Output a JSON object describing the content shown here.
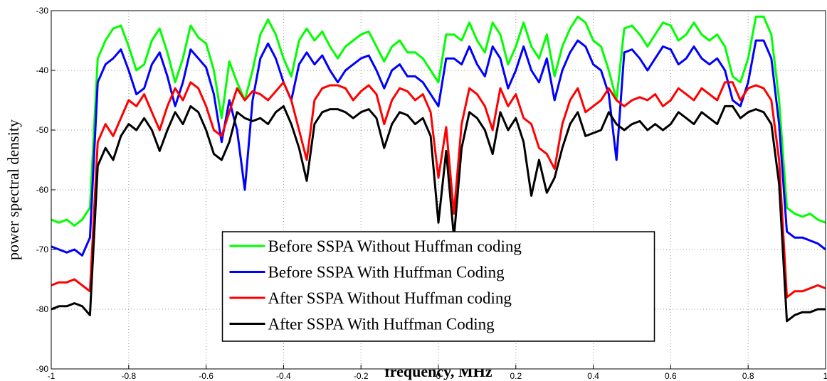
{
  "chart_data": {
    "type": "line",
    "xlabel": "frequency, MHz",
    "ylabel": "power spectral density",
    "xlim": [
      -1,
      1
    ],
    "ylim": [
      -90,
      -30
    ],
    "xticks": [
      -1,
      -0.8,
      -0.6,
      -0.4,
      -0.2,
      0,
      0.2,
      0.4,
      0.6,
      0.8,
      1
    ],
    "yticks": [
      -90,
      -80,
      -70,
      -60,
      -50,
      -40,
      -30
    ],
    "grid": true,
    "legend": "lower center",
    "x": [
      -1.0,
      -0.98,
      -0.96,
      -0.94,
      -0.92,
      -0.9,
      -0.88,
      -0.86,
      -0.84,
      -0.82,
      -0.8,
      -0.78,
      -0.76,
      -0.74,
      -0.72,
      -0.7,
      -0.68,
      -0.66,
      -0.64,
      -0.62,
      -0.6,
      -0.58,
      -0.56,
      -0.54,
      -0.52,
      -0.5,
      -0.48,
      -0.46,
      -0.44,
      -0.42,
      -0.4,
      -0.38,
      -0.36,
      -0.34,
      -0.32,
      -0.3,
      -0.28,
      -0.26,
      -0.24,
      -0.22,
      -0.2,
      -0.18,
      -0.16,
      -0.14,
      -0.12,
      -0.1,
      -0.08,
      -0.06,
      -0.04,
      -0.02,
      0.0,
      0.02,
      0.04,
      0.06,
      0.08,
      0.1,
      0.12,
      0.14,
      0.16,
      0.18,
      0.2,
      0.22,
      0.24,
      0.26,
      0.28,
      0.3,
      0.32,
      0.34,
      0.36,
      0.38,
      0.4,
      0.42,
      0.44,
      0.46,
      0.48,
      0.5,
      0.52,
      0.54,
      0.56,
      0.58,
      0.6,
      0.62,
      0.64,
      0.66,
      0.68,
      0.7,
      0.72,
      0.74,
      0.76,
      0.78,
      0.8,
      0.82,
      0.84,
      0.86,
      0.88,
      0.9,
      0.92,
      0.94,
      0.96,
      0.98,
      1.0
    ],
    "series": [
      {
        "name": "Before SSPA Without Huffman coding",
        "color": "#00ff00",
        "values": [
          -65,
          -65.5,
          -65,
          -66,
          -65,
          -63,
          -38,
          -35,
          -33,
          -32.5,
          -36,
          -40,
          -39,
          -35,
          -33,
          -37,
          -42,
          -38,
          -32.5,
          -34.5,
          -35.5,
          -40,
          -48,
          -38.5,
          -42,
          -45,
          -40,
          -34,
          -31.5,
          -34,
          -38,
          -41,
          -35,
          -33,
          -35,
          -33.5,
          -36,
          -38,
          -36,
          -35,
          -34,
          -33.5,
          -36,
          -38.5,
          -36,
          -35,
          -37,
          -37,
          -38,
          -40,
          -42,
          -34,
          -34,
          -35,
          -32,
          -35,
          -37,
          -32,
          -34,
          -39,
          -36,
          -32,
          -36,
          -38,
          -34,
          -41,
          -36,
          -33,
          -31,
          -32,
          -35,
          -36,
          -40,
          -45,
          -33,
          -32.5,
          -34,
          -36,
          -34,
          -32,
          -32.5,
          -35,
          -34,
          -32,
          -34,
          -35,
          -34,
          -36,
          -41,
          -42,
          -38,
          -31,
          -31,
          -34,
          -45,
          -63,
          -64,
          -64.5,
          -64,
          -65,
          -65.5
        ]
      },
      {
        "name": "Before SSPA With Huffman Coding",
        "color": "#0000ff",
        "values": [
          -69.5,
          -70,
          -70.5,
          -70,
          -71,
          -68,
          -42,
          -39,
          -38,
          -36.5,
          -40,
          -44,
          -43,
          -39,
          -37,
          -41,
          -46,
          -42,
          -36.5,
          -38,
          -39.5,
          -44,
          -52,
          -45,
          -50,
          -60,
          -45,
          -38,
          -35.5,
          -38,
          -42,
          -45,
          -39,
          -37,
          -39,
          -37.5,
          -40,
          -42,
          -40,
          -39,
          -38,
          -37.5,
          -40,
          -43,
          -40,
          -39,
          -41,
          -41,
          -42,
          -44,
          -46,
          -38,
          -38,
          -39,
          -36,
          -39,
          -41,
          -36,
          -38,
          -43,
          -40,
          -36,
          -40,
          -42,
          -38,
          -45,
          -40,
          -37,
          -35,
          -36,
          -39,
          -40,
          -44,
          -55,
          -37,
          -36.5,
          -38,
          -40,
          -38,
          -36,
          -36.5,
          -39,
          -38,
          -36,
          -38,
          -39,
          -38,
          -40,
          -45,
          -46,
          -42,
          -35,
          -35,
          -38,
          -49,
          -67,
          -68,
          -68,
          -68.5,
          -69,
          -70
        ]
      },
      {
        "name": "After SSPA Without Huffman coding",
        "color": "#ff0000",
        "values": [
          -76,
          -75.5,
          -75.5,
          -75,
          -76,
          -77,
          -52,
          -49,
          -51,
          -48,
          -45,
          -46,
          -44,
          -47,
          -50,
          -46,
          -43,
          -45,
          -42,
          -43,
          -46,
          -50,
          -51,
          -47,
          -43,
          -45,
          -43.5,
          -44,
          -45,
          -43.5,
          -42,
          -45,
          -50,
          -55,
          -45,
          -43,
          -42.5,
          -42.5,
          -43,
          -45,
          -43.5,
          -42.5,
          -44,
          -49,
          -45,
          -43,
          -43.5,
          -45,
          -44,
          -47,
          -58,
          -49.5,
          -64,
          -49,
          -43,
          -44,
          -46,
          -50,
          -43,
          -46,
          -44,
          -48,
          -49,
          -53,
          -54,
          -56.5,
          -49,
          -45,
          -43,
          -47,
          -46,
          -45,
          -43,
          -45,
          -46,
          -45,
          -44.5,
          -45,
          -44,
          -46,
          -45,
          -43,
          -44,
          -45,
          -43,
          -44,
          -45,
          -42,
          -42,
          -45,
          -43,
          -42.5,
          -43,
          -45,
          -55,
          -78,
          -77,
          -77,
          -76.5,
          -76,
          -76.5
        ]
      },
      {
        "name": "After SSPA With Huffman Coding",
        "color": "#000000",
        "values": [
          -80,
          -79.5,
          -79.5,
          -79,
          -79.5,
          -81,
          -56,
          -53,
          -55,
          -51,
          -49,
          -50,
          -48,
          -50,
          -53.5,
          -50,
          -47,
          -49,
          -46,
          -47,
          -50,
          -54,
          -55,
          -52,
          -47,
          -48,
          -48.5,
          -48,
          -49,
          -47,
          -46,
          -49,
          -53,
          -58.5,
          -49,
          -47,
          -46.5,
          -46.5,
          -47,
          -48,
          -47,
          -46.5,
          -48,
          -53,
          -49,
          -47,
          -47.5,
          -49,
          -48,
          -51,
          -65.5,
          -53.5,
          -68,
          -53,
          -47,
          -48,
          -50,
          -54,
          -47,
          -50,
          -48,
          -52,
          -61,
          -55,
          -60.5,
          -58,
          -53,
          -49,
          -47,
          -51,
          -50.5,
          -50,
          -47,
          -49,
          -50,
          -49,
          -48.5,
          -50,
          -49,
          -50,
          -49,
          -47,
          -48,
          -49,
          -47,
          -48,
          -49,
          -46,
          -46,
          -48,
          -47,
          -46.5,
          -47,
          -49,
          -59,
          -82,
          -81,
          -80.5,
          -80.5,
          -80,
          -80
        ]
      }
    ]
  }
}
